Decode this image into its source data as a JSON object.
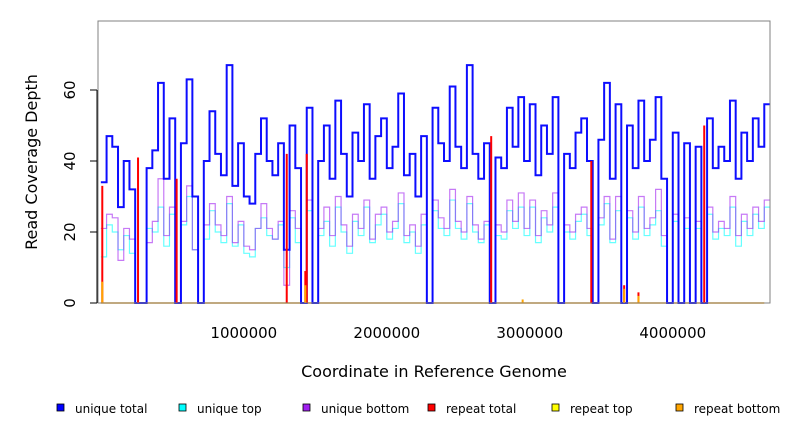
{
  "chart_data": {
    "type": "line",
    "title": "",
    "xlabel": "Coordinate in Reference Genome",
    "ylabel": "Read Coverage Depth",
    "xlim": [
      0,
      4640000
    ],
    "ylim": [
      0,
      80
    ],
    "x_ticks": [
      1000000,
      2000000,
      3000000,
      4000000
    ],
    "x_tick_labels": [
      "1000000",
      "2000000",
      "3000000",
      "4000000"
    ],
    "y_ticks": [
      0,
      20,
      40,
      60
    ],
    "y_tick_labels": [
      "0",
      "20",
      "40",
      "60"
    ],
    "grid": false,
    "legend_placement": "bottom",
    "x_step": 40000,
    "series": [
      {
        "name": "unique total",
        "color": "#0000FF",
        "values": [
          34,
          47,
          44,
          27,
          40,
          32,
          0,
          0,
          38,
          43,
          62,
          35,
          52,
          0,
          45,
          63,
          30,
          0,
          40,
          54,
          42,
          36,
          67,
          33,
          45,
          30,
          28,
          42,
          52,
          40,
          36,
          45,
          15,
          50,
          38,
          0,
          55,
          0,
          40,
          50,
          35,
          57,
          42,
          30,
          48,
          40,
          56,
          35,
          47,
          52,
          38,
          44,
          59,
          36,
          42,
          30,
          47,
          0,
          55,
          45,
          40,
          61,
          44,
          38,
          67,
          42,
          35,
          45,
          0,
          41,
          38,
          55,
          44,
          58,
          40,
          56,
          36,
          50,
          42,
          58,
          0,
          42,
          38,
          48,
          52,
          40,
          0,
          46,
          62,
          35,
          56,
          0,
          50,
          38,
          57,
          40,
          46,
          58,
          35,
          0,
          48,
          0,
          45,
          0,
          44,
          0,
          52,
          38,
          44,
          40,
          57,
          35,
          48,
          40,
          52,
          44,
          56
        ]
      },
      {
        "name": "unique top",
        "color": "#00FFFF",
        "values": [
          13,
          22,
          20,
          15,
          19,
          14,
          0,
          0,
          21,
          20,
          27,
          16,
          25,
          0,
          22,
          30,
          15,
          0,
          18,
          26,
          20,
          17,
          28,
          16,
          22,
          14,
          13,
          21,
          24,
          19,
          18,
          22,
          10,
          24,
          17,
          0,
          26,
          0,
          19,
          23,
          16,
          27,
          20,
          14,
          23,
          19,
          27,
          17,
          22,
          25,
          18,
          21,
          28,
          17,
          20,
          14,
          22,
          0,
          26,
          21,
          19,
          29,
          21,
          18,
          28,
          20,
          17,
          22,
          0,
          19,
          18,
          26,
          21,
          27,
          19,
          27,
          17,
          24,
          20,
          27,
          0,
          20,
          18,
          23,
          25,
          19,
          0,
          22,
          28,
          17,
          26,
          0,
          24,
          18,
          27,
          19,
          22,
          26,
          16,
          0,
          23,
          0,
          21,
          0,
          21,
          0,
          25,
          18,
          21,
          19,
          27,
          16,
          23,
          19,
          25,
          21,
          27
        ]
      },
      {
        "name": "unique bottom",
        "color": "#A020F0",
        "values": [
          21,
          25,
          24,
          12,
          21,
          18,
          0,
          0,
          17,
          23,
          35,
          19,
          27,
          0,
          23,
          33,
          15,
          0,
          22,
          28,
          22,
          19,
          30,
          17,
          23,
          16,
          15,
          21,
          28,
          21,
          18,
          23,
          5,
          26,
          21,
          0,
          29,
          0,
          21,
          27,
          19,
          30,
          22,
          16,
          25,
          21,
          29,
          18,
          25,
          27,
          20,
          23,
          31,
          19,
          22,
          16,
          25,
          0,
          29,
          24,
          21,
          32,
          23,
          20,
          30,
          22,
          18,
          23,
          0,
          22,
          20,
          29,
          23,
          31,
          21,
          29,
          19,
          26,
          22,
          31,
          0,
          22,
          20,
          25,
          27,
          21,
          0,
          24,
          30,
          18,
          30,
          0,
          26,
          20,
          30,
          21,
          24,
          32,
          19,
          0,
          25,
          0,
          24,
          0,
          23,
          0,
          27,
          20,
          23,
          21,
          30,
          19,
          25,
          21,
          27,
          23,
          29
        ]
      },
      {
        "name": "repeat total",
        "color": "#FF0000",
        "spikes": [
          [
            10000,
            33
          ],
          [
            260000,
            41
          ],
          [
            530000,
            35
          ],
          [
            1300000,
            42
          ],
          [
            1430000,
            9
          ],
          [
            1440000,
            42
          ],
          [
            2730000,
            47
          ],
          [
            3430000,
            40
          ],
          [
            3660000,
            5
          ],
          [
            3760000,
            3
          ],
          [
            4220000,
            50
          ]
        ]
      },
      {
        "name": "repeat top",
        "color": "#FFFF00",
        "spikes": []
      },
      {
        "name": "repeat bottom",
        "color": "#FFA500",
        "spikes": [
          [
            10000,
            6
          ],
          [
            1430000,
            5
          ],
          [
            2950000,
            1
          ],
          [
            3660000,
            4
          ],
          [
            3760000,
            2
          ]
        ]
      }
    ]
  }
}
